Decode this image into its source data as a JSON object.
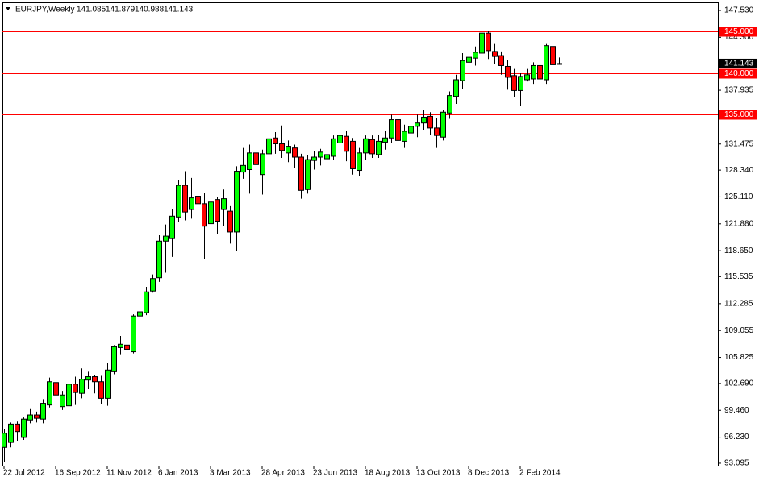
{
  "chart_data": {
    "type": "candlestick",
    "title": "EURJPY,Weekly",
    "categories": [
      "22 Jul 2012",
      null,
      null,
      null,
      null,
      null,
      null,
      null,
      "16 Sep 2012",
      null,
      null,
      null,
      null,
      null,
      null,
      null,
      "11 Nov 2012",
      null,
      null,
      null,
      null,
      null,
      null,
      null,
      "6 Jan 2013",
      null,
      null,
      null,
      null,
      null,
      null,
      null,
      "3 Mar 2013",
      null,
      null,
      null,
      null,
      null,
      null,
      null,
      "28 Apr 2013",
      null,
      null,
      null,
      null,
      null,
      null,
      null,
      "23 Jun 2013",
      null,
      null,
      null,
      null,
      null,
      null,
      null,
      "18 Aug 2013",
      null,
      null,
      null,
      null,
      null,
      null,
      null,
      "13 Oct 2013",
      null,
      null,
      null,
      null,
      null,
      null,
      null,
      "8 Dec 2013",
      null,
      null,
      null,
      null,
      null,
      null,
      null,
      "2 Feb 2014",
      null,
      null,
      null,
      null,
      null,
      null
    ],
    "series": {
      "open": [
        95.0,
        95.6,
        97.8,
        96.2,
        98.3,
        98.9,
        98.4,
        100.1,
        102.8,
        99.9,
        100.0,
        102.6,
        101.5,
        103.1,
        103.5,
        102.9,
        100.9,
        104.1,
        107.0,
        107.3,
        106.5,
        110.8,
        111.2,
        113.8,
        115.4,
        119.8,
        120.1,
        122.7,
        126.5,
        123.6,
        125.2,
        124.3,
        121.9,
        124.8,
        123.6,
        123.4,
        120.9,
        128.1,
        128.4,
        130.4,
        127.8,
        130.3,
        132.2,
        131.5,
        130.4,
        131.0,
        129.9,
        126.0,
        129.5,
        129.9,
        129.7,
        130.0,
        131.6,
        132.4,
        131.8,
        128.3,
        130.4,
        132.0,
        130.2,
        131.7,
        132.2,
        134.4,
        131.8,
        132.8,
        133.6,
        134.0,
        134.8,
        133.4,
        132.3,
        135.2,
        137.2,
        139.1,
        141.3,
        141.8,
        142.4,
        144.8,
        142.6,
        142.1,
        140.8,
        139.7,
        137.9,
        139.2,
        139.3,
        140.9,
        139.2,
        143.2,
        141.085
      ],
      "high": [
        97.2,
        98.0,
        98.1,
        98.6,
        99.6,
        99.3,
        100.8,
        103.4,
        104.0,
        101.8,
        103.0,
        103.5,
        104.5,
        104.1,
        103.7,
        103.6,
        105.1,
        107.3,
        108.4,
        107.9,
        111.0,
        112.0,
        114.3,
        115.8,
        120.5,
        121.8,
        123.6,
        127.1,
        128.2,
        127.4,
        126.8,
        125.6,
        125.6,
        125.1,
        126.0,
        124.0,
        128.8,
        131.0,
        131.4,
        131.2,
        130.8,
        132.4,
        132.9,
        133.7,
        131.9,
        131.4,
        130.3,
        130.1,
        130.6,
        130.9,
        131.2,
        132.5,
        134.0,
        133.0,
        132.2,
        131.0,
        132.5,
        132.5,
        132.6,
        133.0,
        135.0,
        134.8,
        133.8,
        134.1,
        135.0,
        135.6,
        135.3,
        134.6,
        135.6,
        137.8,
        139.8,
        142.4,
        142.6,
        143.2,
        145.4,
        145.1,
        143.6,
        142.6,
        141.6,
        140.5,
        140.0,
        140.5,
        141.3,
        141.7,
        143.6,
        143.7,
        141.879
      ],
      "low": [
        93.2,
        95.0,
        95.8,
        95.9,
        97.9,
        98.0,
        97.9,
        99.8,
        100.5,
        99.5,
        99.6,
        100.1,
        100.9,
        102.0,
        101.5,
        100.2,
        100.0,
        103.8,
        106.2,
        105.9,
        106.3,
        110.2,
        110.9,
        113.6,
        114.9,
        116.0,
        117.9,
        122.1,
        122.3,
        122.5,
        121.2,
        117.7,
        120.6,
        120.6,
        121.6,
        119.5,
        118.6,
        127.3,
        125.5,
        126.6,
        125.4,
        128.9,
        130.3,
        129.8,
        129.3,
        128.6,
        124.9,
        125.5,
        128.4,
        128.9,
        128.6,
        129.6,
        131.0,
        129.4,
        127.8,
        127.6,
        129.6,
        129.8,
        129.8,
        130.8,
        131.6,
        131.4,
        131.0,
        130.8,
        132.3,
        133.2,
        132.6,
        131.0,
        131.9,
        134.5,
        136.3,
        138.1,
        140.3,
        140.9,
        141.8,
        141.7,
        141.1,
        139.8,
        138.0,
        137.1,
        136.0,
        139.0,
        138.7,
        138.2,
        138.7,
        140.4,
        140.988
      ],
      "close": [
        96.7,
        97.8,
        96.9,
        98.4,
        98.9,
        98.5,
        100.3,
        102.9,
        101.3,
        101.3,
        102.6,
        101.6,
        103.2,
        103.5,
        102.9,
        100.9,
        104.3,
        107.1,
        107.4,
        106.8,
        110.8,
        111.3,
        113.7,
        115.3,
        119.8,
        120.4,
        122.8,
        126.5,
        123.3,
        125.0,
        124.3,
        121.6,
        124.5,
        122.2,
        124.9,
        120.9,
        128.2,
        128.9,
        130.4,
        129.0,
        130.3,
        132.1,
        131.5,
        130.7,
        131.2,
        129.9,
        125.9,
        129.6,
        129.9,
        130.5,
        130.2,
        132.1,
        132.5,
        130.6,
        128.5,
        130.4,
        132.1,
        130.3,
        131.8,
        132.2,
        134.4,
        131.9,
        133.0,
        133.6,
        134.0,
        134.7,
        133.4,
        132.5,
        135.3,
        137.3,
        139.2,
        141.5,
        141.9,
        142.5,
        144.8,
        142.7,
        142.0,
        140.9,
        139.5,
        137.9,
        139.6,
        139.8,
        140.9,
        139.3,
        143.3,
        141.0,
        141.143
      ]
    },
    "up_color": "#00ff00",
    "down_color": "#ff0000",
    "ylim": [
      92.8,
      148.5
    ],
    "yticks": [
      {
        "value": 147.53,
        "label": "147.530"
      },
      {
        "value": 144.3,
        "label": "144.300"
      },
      137.935,
      131.475,
      {
        "value": 128.34,
        "label": "128.340"
      },
      {
        "value": 125.11,
        "label": "125.110"
      },
      {
        "value": 121.88,
        "label": "121.880"
      },
      {
        "value": 118.65,
        "label": "118.650"
      },
      115.535,
      112.285,
      109.055,
      105.825,
      {
        "value": 102.69,
        "label": "102.690"
      },
      {
        "value": 99.46,
        "label": "99.460"
      },
      {
        "value": 96.23,
        "label": "96.230"
      },
      93.095
    ],
    "hlines": [
      {
        "value": 145,
        "label": "145.000"
      },
      {
        "value": 140,
        "label": "140.000"
      },
      {
        "value": 135,
        "label": "135.000"
      }
    ],
    "hline_color": "#ff0000"
  }
}
